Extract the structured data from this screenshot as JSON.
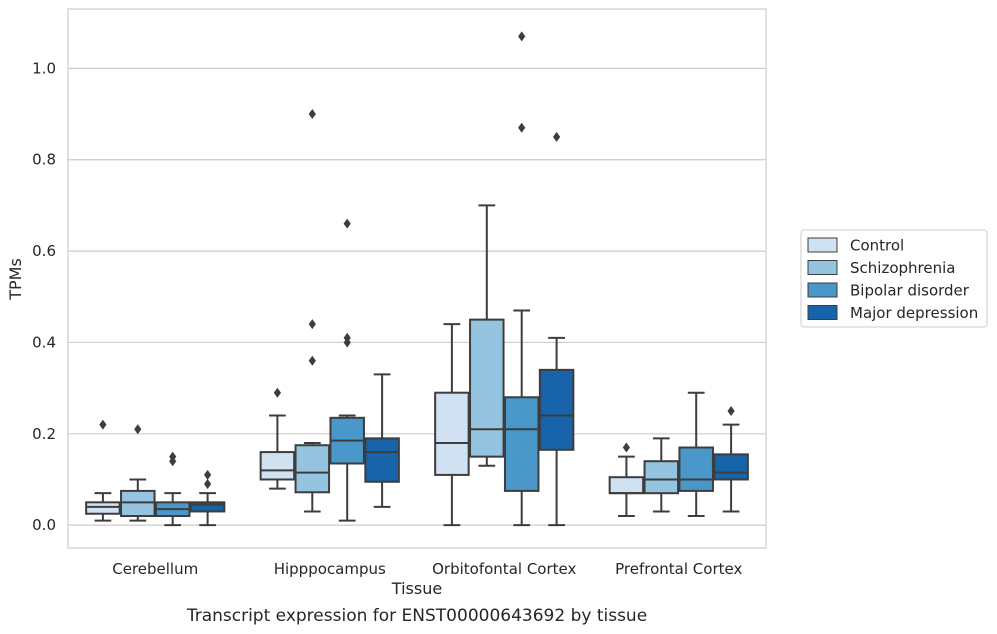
{
  "chart_data": {
    "type": "box",
    "title": "",
    "caption": "Transcript expression for ENST00000643692 by tissue",
    "xlabel": "Tissue",
    "ylabel": "TPMs",
    "categories": [
      "Cerebellum",
      "Hipppocampus",
      "Orbitofontal Cortex",
      "Prefrontal Cortex"
    ],
    "ylim": [
      -0.05,
      1.13
    ],
    "yticks": [
      0.0,
      0.2,
      0.4,
      0.6,
      0.8,
      1.0
    ],
    "ytick_labels": [
      "0.0",
      "0.2",
      "0.4",
      "0.6",
      "0.8",
      "1.0"
    ],
    "grid": true,
    "legend_position": "right",
    "series": [
      {
        "name": "Control",
        "color": "#d0e1f2",
        "boxes": [
          {
            "whisker_low": 0.01,
            "q1": 0.025,
            "median": 0.04,
            "q3": 0.05,
            "whisker_high": 0.07,
            "outliers": [
              0.22
            ]
          },
          {
            "whisker_low": 0.08,
            "q1": 0.1,
            "median": 0.12,
            "q3": 0.16,
            "whisker_high": 0.24,
            "outliers": [
              0.29
            ]
          },
          {
            "whisker_low": 0.0,
            "q1": 0.11,
            "median": 0.18,
            "q3": 0.29,
            "whisker_high": 0.44,
            "outliers": []
          },
          {
            "whisker_low": 0.02,
            "q1": 0.07,
            "median": 0.07,
            "q3": 0.105,
            "whisker_high": 0.15,
            "outliers": [
              0.17
            ]
          }
        ]
      },
      {
        "name": "Schizophrenia",
        "color": "#94c4df",
        "boxes": [
          {
            "whisker_low": 0.01,
            "q1": 0.02,
            "median": 0.05,
            "q3": 0.075,
            "whisker_high": 0.1,
            "outliers": [
              0.21
            ]
          },
          {
            "whisker_low": 0.03,
            "q1": 0.072,
            "median": 0.115,
            "q3": 0.175,
            "whisker_high": 0.18,
            "outliers": [
              0.9,
              0.44,
              0.36
            ]
          },
          {
            "whisker_low": 0.13,
            "q1": 0.15,
            "median": 0.21,
            "q3": 0.45,
            "whisker_high": 0.7,
            "outliers": []
          },
          {
            "whisker_low": 0.03,
            "q1": 0.07,
            "median": 0.1,
            "q3": 0.14,
            "whisker_high": 0.19,
            "outliers": []
          }
        ]
      },
      {
        "name": "Bipolar disorder",
        "color": "#4a98c9",
        "boxes": [
          {
            "whisker_low": 0.0,
            "q1": 0.02,
            "median": 0.035,
            "q3": 0.05,
            "whisker_high": 0.07,
            "outliers": [
              0.15,
              0.14
            ]
          },
          {
            "whisker_low": 0.01,
            "q1": 0.135,
            "median": 0.185,
            "q3": 0.235,
            "whisker_high": 0.24,
            "outliers": [
              0.66,
              0.41,
              0.4
            ]
          },
          {
            "whisker_low": 0.0,
            "q1": 0.075,
            "median": 0.21,
            "q3": 0.28,
            "whisker_high": 0.47,
            "outliers": [
              1.07,
              0.87
            ]
          },
          {
            "whisker_low": 0.02,
            "q1": 0.075,
            "median": 0.1,
            "q3": 0.17,
            "whisker_high": 0.29,
            "outliers": []
          }
        ]
      },
      {
        "name": "Major depression",
        "color": "#1764ab",
        "boxes": [
          {
            "whisker_low": 0.0,
            "q1": 0.03,
            "median": 0.045,
            "q3": 0.05,
            "whisker_high": 0.07,
            "outliers": [
              0.11,
              0.09
            ]
          },
          {
            "whisker_low": 0.04,
            "q1": 0.095,
            "median": 0.16,
            "q3": 0.19,
            "whisker_high": 0.33,
            "outliers": []
          },
          {
            "whisker_low": 0.0,
            "q1": 0.165,
            "median": 0.24,
            "q3": 0.34,
            "whisker_high": 0.41,
            "outliers": [
              0.85
            ]
          },
          {
            "whisker_low": 0.03,
            "q1": 0.1,
            "median": 0.115,
            "q3": 0.155,
            "whisker_high": 0.22,
            "outliers": [
              0.25
            ]
          }
        ]
      }
    ]
  }
}
